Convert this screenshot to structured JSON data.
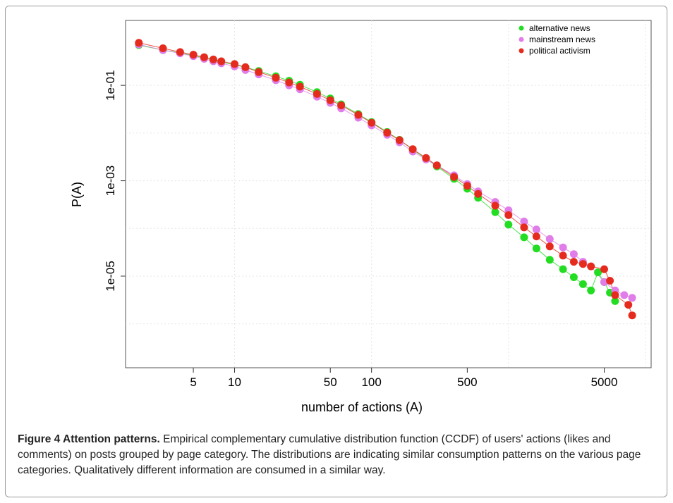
{
  "figure": {
    "caption_label": "Figure 4 Attention patterns.",
    "caption_text": " Empirical complementary cumulative distribution function (CCDF) of users' actions (likes and comments) on posts grouped by page category. The distributions are indicating similar consumption patterns on the various page categories. Qualitatively different information are consumed in a similar way."
  },
  "chart_data": {
    "type": "scatter",
    "title": "",
    "xlabel": "number of actions (A)",
    "ylabel": "P(A)",
    "x_scale": "log",
    "y_scale": "log",
    "xlim": [
      1.6,
      11000
    ],
    "ylim": [
      1.2e-07,
      2.3
    ],
    "x_ticks": [
      5,
      10,
      50,
      100,
      500,
      5000
    ],
    "x_tick_labels": [
      "5",
      "10",
      "50",
      "100",
      "500",
      "5000"
    ],
    "y_ticks": [
      0.1,
      0.001,
      1e-05
    ],
    "y_tick_labels": [
      "1e-01",
      "1e-03",
      "1e-05"
    ],
    "grid": true,
    "legend_position": "top-right",
    "series": [
      {
        "name": "alternative news",
        "color": "#22dd22",
        "x": [
          2,
          3,
          4,
          5,
          6,
          7,
          8,
          10,
          12,
          15,
          20,
          25,
          30,
          40,
          50,
          60,
          80,
          100,
          130,
          160,
          200,
          250,
          300,
          400,
          500,
          600,
          800,
          1000,
          1300,
          1600,
          2000,
          2500,
          3000,
          3500,
          4000,
          4500,
          5000,
          5500,
          6000
        ],
        "y": [
          0.7,
          0.55,
          0.48,
          0.42,
          0.38,
          0.34,
          0.31,
          0.27,
          0.24,
          0.2,
          0.155,
          0.125,
          0.103,
          0.072,
          0.053,
          0.04,
          0.025,
          0.017,
          0.0105,
          0.0072,
          0.0045,
          0.0029,
          0.002,
          0.0011,
          0.00068,
          0.00044,
          0.00022,
          0.00012,
          6.5e-05,
          3.8e-05,
          2.2e-05,
          1.4e-05,
          9.5e-06,
          6.8e-06,
          5e-06,
          1.2e-05,
          7.5e-06,
          4.5e-06,
          3e-06
        ]
      },
      {
        "name": "mainstream news",
        "color": "#e07de8",
        "x": [
          2,
          3,
          4,
          5,
          6,
          7,
          8,
          10,
          12,
          15,
          20,
          25,
          30,
          40,
          50,
          60,
          80,
          100,
          130,
          160,
          200,
          250,
          300,
          400,
          500,
          600,
          800,
          1000,
          1300,
          1600,
          2000,
          2500,
          3000,
          3500,
          4000,
          5000,
          6000,
          7000,
          8000
        ],
        "y": [
          0.72,
          0.55,
          0.47,
          0.41,
          0.36,
          0.32,
          0.29,
          0.25,
          0.21,
          0.17,
          0.128,
          0.1,
          0.083,
          0.058,
          0.043,
          0.033,
          0.021,
          0.0145,
          0.0092,
          0.0064,
          0.0041,
          0.0028,
          0.0021,
          0.0013,
          0.00085,
          0.0006,
          0.00036,
          0.00024,
          0.00014,
          9.5e-05,
          6e-05,
          4e-05,
          2.9e-05,
          2e-05,
          1.6e-05,
          7.5e-06,
          5e-06,
          4e-06,
          3.5e-06
        ]
      },
      {
        "name": "political activism",
        "color": "#e52b1e",
        "x": [
          2,
          3,
          4,
          5,
          6,
          7,
          8,
          10,
          12,
          15,
          20,
          25,
          30,
          40,
          50,
          60,
          80,
          100,
          130,
          160,
          200,
          250,
          300,
          400,
          500,
          600,
          800,
          1000,
          1300,
          1600,
          2000,
          2500,
          3000,
          3500,
          4000,
          5000,
          5500,
          6000,
          7500,
          8000
        ],
        "y": [
          0.78,
          0.6,
          0.5,
          0.44,
          0.39,
          0.35,
          0.32,
          0.28,
          0.24,
          0.19,
          0.145,
          0.115,
          0.094,
          0.066,
          0.049,
          0.038,
          0.024,
          0.0165,
          0.0102,
          0.0071,
          0.0046,
          0.003,
          0.0021,
          0.0012,
          0.00078,
          0.00053,
          0.0003,
          0.00019,
          0.000105,
          6.8e-05,
          4.2e-05,
          2.7e-05,
          2e-05,
          1.8e-05,
          1.6e-05,
          1.4e-05,
          8e-06,
          4e-06,
          2.5e-06,
          1.5e-06
        ]
      }
    ]
  }
}
